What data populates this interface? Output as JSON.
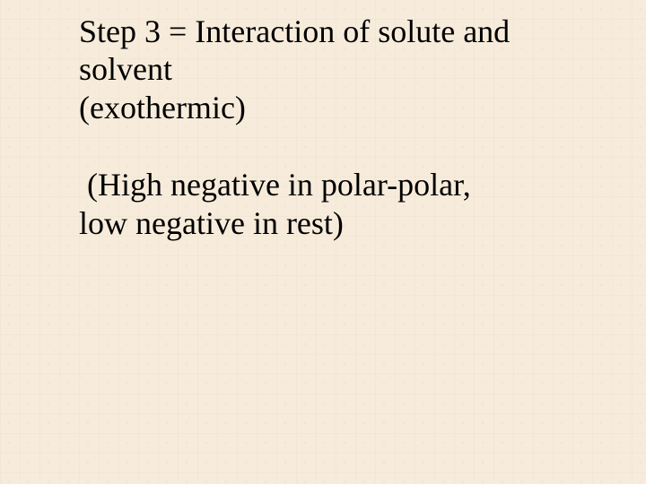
{
  "slide": {
    "background_color": "#f7ecdc",
    "text_color": "#000000",
    "font_family": "Times New Roman",
    "font_size_pt": 27,
    "paragraphs": {
      "p1_line1": "Step 3 = Interaction of solute and",
      "p1_line2": "solvent",
      "p1_line3": "(exothermic)",
      "p2_line1": " (High negative in polar-polar,",
      "p2_line2": "low negative in rest)"
    }
  }
}
